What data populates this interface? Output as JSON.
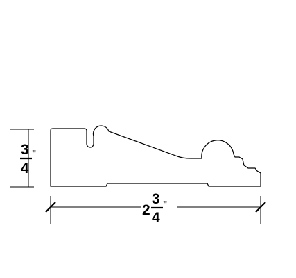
{
  "drawing": {
    "line_color": "#000000",
    "background": "#ffffff"
  },
  "height_dimension": {
    "numerator": "3",
    "denominator": "4",
    "inch_mark": "\""
  },
  "width_dimension": {
    "whole": "2",
    "numerator": "3",
    "denominator": "4",
    "inch_mark": "\""
  }
}
